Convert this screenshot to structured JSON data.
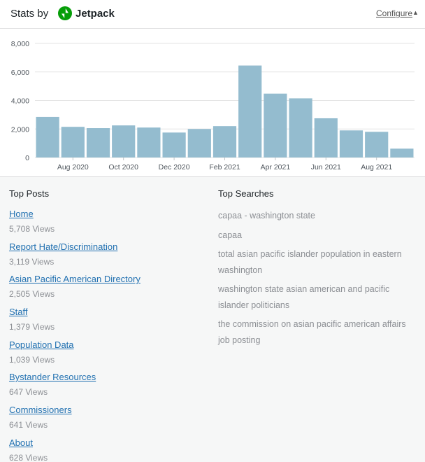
{
  "header": {
    "title_prefix": "Stats by",
    "brand": "Jetpack",
    "configure_label": "Configure",
    "toggle_icon": "▲"
  },
  "colors": {
    "bar": "#94bccf",
    "link": "#2271b1",
    "muted": "#8c8f94",
    "brand_green": "#069e08"
  },
  "chart_data": {
    "type": "bar",
    "categories": [
      "Jul 2020",
      "Aug 2020",
      "Sep 2020",
      "Oct 2020",
      "Nov 2020",
      "Dec 2020",
      "Jan 2021",
      "Feb 2021",
      "Mar 2021",
      "Apr 2021",
      "May 2021",
      "Jun 2021",
      "Jul 2021",
      "Aug 2021",
      "Sep 2021"
    ],
    "values": [
      2850,
      2150,
      2060,
      2250,
      2100,
      1750,
      2000,
      2200,
      6450,
      4480,
      4150,
      2750,
      1900,
      1800,
      620
    ],
    "x_tick_labels": [
      "Aug 2020",
      "Oct 2020",
      "Dec 2020",
      "Feb 2021",
      "Apr 2021",
      "Jun 2021",
      "Aug 2021"
    ],
    "y_ticks": [
      0,
      2000,
      4000,
      6000,
      8000
    ],
    "y_tick_labels": [
      "0",
      "2,000",
      "4,000",
      "6,000",
      "8,000"
    ],
    "ylim": [
      0,
      8000
    ],
    "grid": true
  },
  "top_posts": {
    "title": "Top Posts",
    "items": [
      {
        "label": "Home",
        "views": "5,708 Views"
      },
      {
        "label": "Report Hate/Discrimination",
        "views": "3,119 Views"
      },
      {
        "label": "Asian Pacific American Directory",
        "views": "2,505 Views"
      },
      {
        "label": "Staff",
        "views": "1,379 Views"
      },
      {
        "label": "Population Data",
        "views": "1,039 Views"
      },
      {
        "label": "Bystander Resources",
        "views": "647 Views"
      },
      {
        "label": "Commissioners",
        "views": "641 Views"
      },
      {
        "label": "About",
        "views": "628 Views"
      }
    ]
  },
  "top_searches": {
    "title": "Top Searches",
    "items": [
      "capaa - washington state",
      "capaa",
      "total asian pacific islander population in eastern washington",
      "washington state asian american and pacific islander politicians",
      "the commission on asian pacific american affairs job posting"
    ]
  }
}
